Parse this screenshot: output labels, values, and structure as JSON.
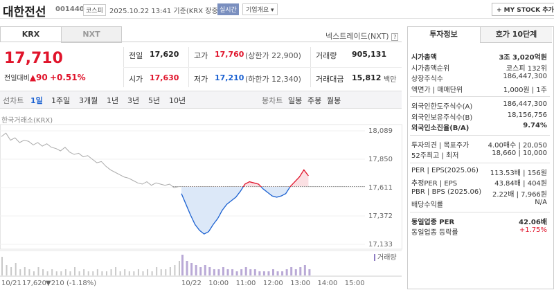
{
  "header": {
    "name": "대한전선",
    "code": "001440",
    "market": "코스피",
    "timestamp": "2025.10.22 13:41 기준(KRX 장중)",
    "realtime": "실시간",
    "company_info": "기업개요",
    "my_stock": "+ MY STOCK 추가"
  },
  "tabs": {
    "krx": "KRX",
    "nxt": "NXT",
    "nxt_link": "넥스트레이드(NXT)"
  },
  "price": {
    "current": "17,710",
    "change_label": "전일대비",
    "change_arrow": "▲",
    "change": "90",
    "change_pct": "+0.51%"
  },
  "summary": {
    "rows": [
      [
        {
          "label": "전일",
          "value": "17,620"
        },
        {
          "label": "고가",
          "value": "17,760",
          "extra": "(상한가 22,900)"
        },
        {
          "label": "거래량",
          "value": "905,131"
        }
      ],
      [
        {
          "label": "시가",
          "value": "17,630"
        },
        {
          "label": "저가",
          "value": "17,210",
          "extra": "(하한가 12,340)"
        },
        {
          "label": "거래대금",
          "value": "15,812",
          "unit": "백만"
        }
      ]
    ]
  },
  "periods": {
    "line": [
      "선차트",
      "1일",
      "1주일",
      "3개월",
      "1년",
      "3년",
      "5년",
      "10년"
    ],
    "candle": [
      "봉차트",
      "일봉",
      "주봉",
      "월봉"
    ]
  },
  "chart": {
    "source": "한국거래소(KRX)",
    "ylim": [
      17133,
      18089
    ],
    "reference": 17620,
    "yticks": [
      {
        "value": 18089,
        "label": "18,089"
      },
      {
        "value": 17850,
        "label": "17,850"
      },
      {
        "value": 17611,
        "label": "17,611"
      },
      {
        "value": 17372,
        "label": "17,372"
      },
      {
        "value": 17133,
        "label": "17,133"
      }
    ],
    "prev_day": {
      "label": "10/21",
      "close": "17,620",
      "change": "▼210 (-1.18%)",
      "values": [
        18040,
        18070,
        18010,
        18030,
        17990,
        18010,
        18000,
        17970,
        17990,
        17960,
        17980,
        17950,
        17940,
        17920,
        17950,
        17910,
        17890,
        17900,
        17870,
        17880,
        17850,
        17820,
        17830,
        17790,
        17760,
        17740,
        17720,
        17700,
        17690,
        17670,
        17650,
        17640,
        17660,
        17630,
        17650,
        17640,
        17630,
        17640,
        17610,
        17620
      ],
      "volume": [
        9,
        5,
        4,
        6,
        3,
        4,
        3,
        2,
        4,
        3,
        2,
        3,
        2,
        2,
        3,
        2,
        4,
        2,
        3,
        2,
        2,
        3,
        2,
        2,
        3,
        4,
        2,
        3,
        2,
        2,
        3,
        2,
        3,
        2,
        4,
        3,
        3,
        4,
        5,
        7
      ]
    },
    "today": {
      "label": "10/22",
      "values": [
        17560,
        17470,
        17380,
        17300,
        17250,
        17220,
        17240,
        17300,
        17350,
        17420,
        17470,
        17500,
        17530,
        17580,
        17640,
        17660,
        17650,
        17640,
        17600,
        17570,
        17540,
        17530,
        17540,
        17560,
        17620,
        17660,
        17700,
        17760,
        17710
      ],
      "volume": [
        10,
        7,
        6,
        5,
        4,
        5,
        4,
        3,
        3,
        4,
        3,
        3,
        2,
        3,
        4,
        3,
        3,
        2,
        2,
        2,
        3,
        2,
        2,
        3,
        4,
        3,
        4,
        5,
        3
      ]
    },
    "xticks": [
      "10:00",
      "11:00",
      "12:00",
      "13:00",
      "14:00",
      "15:00"
    ],
    "volume_label": "거래량"
  },
  "invest": {
    "tabs": [
      "투자정보",
      "호가 10단계"
    ],
    "groups": [
      [
        [
          "시가총액",
          "3조 3,020억원"
        ],
        [
          "시가총액순위",
          "코스피 132위"
        ],
        [
          "상장주식수",
          "186,447,300"
        ],
        [
          "액면가 | 매매단위",
          "1,000원 | 1주"
        ]
      ],
      [
        [
          "외국인한도주식수(A)",
          "186,447,300"
        ],
        [
          "외국인보유주식수(B)",
          "18,156,756"
        ],
        [
          "외국인소진율(B/A)",
          "9.74%"
        ]
      ],
      [
        [
          "투자의견 | 목표주가",
          "4.00매수 | 20,050"
        ],
        [
          "52주최고 | 최저",
          "18,660 | 10,000"
        ]
      ],
      [
        [
          "PER | EPS(2025.06)",
          "113.53배 | 156원"
        ],
        [
          "추정PER | EPS",
          "43.84배 | 404원"
        ],
        [
          "PBR | BPS (2025.06)",
          "2.22배 | 7,966원"
        ],
        [
          "배당수익률",
          "N/A"
        ]
      ],
      [
        [
          "동일업종 PER",
          "42.06배"
        ],
        [
          "동일업종 등락률",
          "+1.75%"
        ]
      ]
    ]
  }
}
